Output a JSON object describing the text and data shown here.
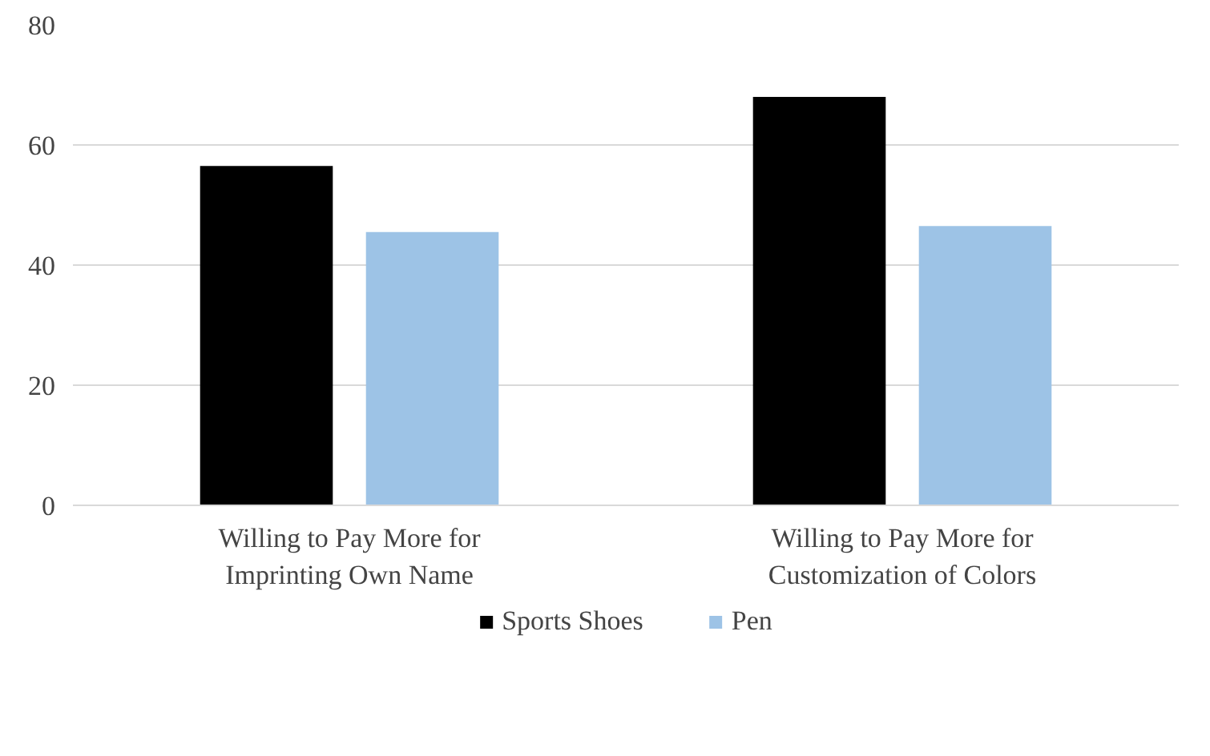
{
  "chart_data": {
    "type": "bar",
    "categories": [
      "Willing to Pay More for Imprinting Own Name",
      "Willing to Pay More for Customization of Colors"
    ],
    "series": [
      {
        "name": "Sports Shoes",
        "color": "#000000",
        "values": [
          56.5,
          68
        ]
      },
      {
        "name": "Pen",
        "color": "#9dc3e6",
        "values": [
          45.5,
          46.5
        ]
      }
    ],
    "ylim": [
      0,
      80
    ],
    "yticks": [
      0,
      20,
      40,
      60,
      80
    ],
    "grid": "y",
    "legend": "bottom"
  }
}
